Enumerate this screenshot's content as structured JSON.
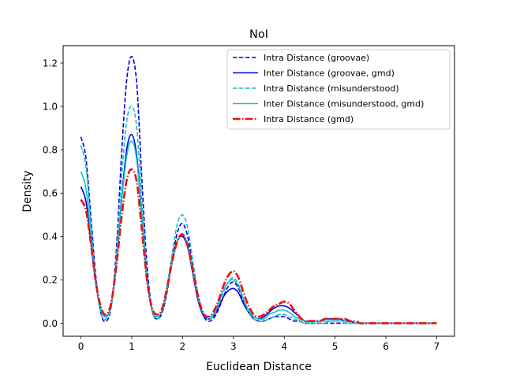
{
  "chart_data": {
    "type": "line",
    "title": "NoI",
    "xlabel": "Euclidean Distance",
    "ylabel": "Density",
    "xlim": [
      -0.35,
      7.35
    ],
    "ylim": [
      -0.06,
      1.28
    ],
    "xticks": [
      0,
      1,
      2,
      3,
      4,
      5,
      6,
      7
    ],
    "xtick_labels": [
      "0",
      "1",
      "2",
      "3",
      "4",
      "5",
      "6",
      "7"
    ],
    "yticks": [
      0.0,
      0.2,
      0.4,
      0.6,
      0.8,
      1.0,
      1.2
    ],
    "ytick_labels": [
      "0.0",
      "0.2",
      "0.4",
      "0.6",
      "0.8",
      "1.0",
      "1.2"
    ],
    "grid": false,
    "legend_position": "top-right",
    "series": [
      {
        "name": "Intra Distance (groovae)",
        "color": "#0000dd",
        "style": "dashed",
        "x": [
          0,
          0.1,
          0.2,
          0.3,
          0.4,
          0.5,
          0.6,
          0.7,
          0.8,
          0.9,
          1.0,
          1.1,
          1.2,
          1.3,
          1.4,
          1.5,
          1.6,
          1.7,
          1.8,
          1.9,
          2.0,
          2.1,
          2.2,
          2.3,
          2.4,
          2.5,
          2.6,
          2.7,
          2.8,
          2.9,
          3.0,
          3.1,
          3.2,
          3.3,
          3.4,
          3.5,
          3.6,
          3.7,
          3.8,
          3.9,
          4.0,
          4.1,
          4.2,
          4.3,
          4.4,
          4.5,
          4.6,
          4.7,
          4.8,
          4.9,
          5.0,
          5.1,
          5.2,
          5.3,
          5.4,
          5.5,
          5.6,
          5.7,
          5.8,
          5.9,
          6.0,
          6.1,
          6.2,
          6.3,
          6.4,
          6.5,
          6.6,
          6.7,
          6.8,
          6.9,
          7.0
        ],
        "values": [
          0.86,
          0.76,
          0.48,
          0.2,
          0.04,
          0.01,
          0.08,
          0.35,
          0.78,
          1.12,
          1.23,
          1.1,
          0.66,
          0.27,
          0.06,
          0.02,
          0.05,
          0.15,
          0.3,
          0.42,
          0.46,
          0.4,
          0.27,
          0.13,
          0.04,
          0.01,
          0.02,
          0.06,
          0.12,
          0.17,
          0.19,
          0.16,
          0.1,
          0.05,
          0.02,
          0.01,
          0.01,
          0.02,
          0.03,
          0.03,
          0.03,
          0.02,
          0.01,
          0.01,
          0.0,
          0.0,
          0.0,
          0.0,
          0.0,
          0.0,
          0.0,
          0.0,
          0.0,
          0.0,
          0.0,
          0.0,
          0.0,
          0.0,
          0.0,
          0.0,
          0.0,
          0.0,
          0.0,
          0.0,
          0.0,
          0.0,
          0.0,
          0.0,
          0.0,
          0.0,
          0.0
        ]
      },
      {
        "name": "Inter Distance (groovae, gmd)",
        "color": "#0000dd",
        "style": "solid",
        "x": [
          0,
          0.1,
          0.2,
          0.3,
          0.4,
          0.5,
          0.6,
          0.7,
          0.8,
          0.9,
          1.0,
          1.1,
          1.2,
          1.3,
          1.4,
          1.5,
          1.6,
          1.7,
          1.8,
          1.9,
          2.0,
          2.1,
          2.2,
          2.3,
          2.4,
          2.5,
          2.6,
          2.7,
          2.8,
          2.9,
          3.0,
          3.1,
          3.2,
          3.3,
          3.4,
          3.5,
          3.6,
          3.7,
          3.8,
          3.9,
          4.0,
          4.1,
          4.2,
          4.3,
          4.4,
          4.5,
          4.6,
          4.7,
          4.8,
          4.9,
          5.0,
          5.1,
          5.2,
          5.3,
          5.4,
          5.5,
          5.6,
          5.7,
          5.8,
          5.9,
          6.0,
          6.1,
          6.2,
          6.3,
          6.4,
          6.5,
          6.6,
          6.7,
          6.8,
          6.9,
          7.0
        ],
        "values": [
          0.63,
          0.56,
          0.37,
          0.17,
          0.06,
          0.03,
          0.09,
          0.28,
          0.57,
          0.8,
          0.87,
          0.77,
          0.49,
          0.2,
          0.06,
          0.03,
          0.06,
          0.16,
          0.29,
          0.38,
          0.4,
          0.35,
          0.23,
          0.11,
          0.04,
          0.02,
          0.03,
          0.07,
          0.12,
          0.15,
          0.16,
          0.14,
          0.09,
          0.05,
          0.03,
          0.02,
          0.03,
          0.05,
          0.07,
          0.08,
          0.08,
          0.07,
          0.05,
          0.03,
          0.01,
          0.01,
          0.01,
          0.01,
          0.02,
          0.02,
          0.02,
          0.02,
          0.01,
          0.01,
          0.0,
          0.0,
          0.0,
          0.0,
          0.0,
          0.0,
          0.0,
          0.0,
          0.0,
          0.0,
          0.0,
          0.0,
          0.0,
          0.0,
          0.0,
          0.0,
          0.0
        ]
      },
      {
        "name": "Intra Distance (misunderstood)",
        "color": "#17becf",
        "style": "dashed",
        "x": [
          0,
          0.1,
          0.2,
          0.3,
          0.4,
          0.5,
          0.6,
          0.7,
          0.8,
          0.9,
          1.0,
          1.1,
          1.2,
          1.3,
          1.4,
          1.5,
          1.6,
          1.7,
          1.8,
          1.9,
          2.0,
          2.1,
          2.2,
          2.3,
          2.4,
          2.5,
          2.6,
          2.7,
          2.8,
          2.9,
          3.0,
          3.1,
          3.2,
          3.3,
          3.4,
          3.5,
          3.6,
          3.7,
          3.8,
          3.9,
          4.0,
          4.1,
          4.2,
          4.3,
          4.4,
          4.5,
          4.6,
          4.7,
          4.8,
          4.9,
          5.0,
          5.1,
          5.2,
          5.3,
          5.4,
          5.5,
          5.6,
          5.7,
          5.8,
          5.9,
          6.0,
          6.1,
          6.2,
          6.3,
          6.4,
          6.5,
          6.6,
          6.7,
          6.8,
          6.9,
          7.0
        ],
        "values": [
          0.82,
          0.72,
          0.45,
          0.18,
          0.04,
          0.02,
          0.08,
          0.31,
          0.67,
          0.93,
          1.0,
          0.9,
          0.56,
          0.23,
          0.06,
          0.02,
          0.06,
          0.18,
          0.33,
          0.46,
          0.5,
          0.44,
          0.29,
          0.14,
          0.05,
          0.02,
          0.03,
          0.08,
          0.14,
          0.19,
          0.21,
          0.18,
          0.11,
          0.05,
          0.02,
          0.01,
          0.01,
          0.02,
          0.03,
          0.04,
          0.04,
          0.03,
          0.02,
          0.01,
          0.0,
          0.0,
          0.0,
          0.0,
          0.0,
          0.01,
          0.01,
          0.01,
          0.0,
          0.0,
          0.0,
          0.0,
          0.0,
          0.0,
          0.0,
          0.0,
          0.0,
          0.0,
          0.0,
          0.0,
          0.0,
          0.0,
          0.0,
          0.0,
          0.0,
          0.0,
          0.0
        ]
      },
      {
        "name": "Inter Distance (misunderstood, gmd)",
        "color": "#17becf",
        "style": "solid",
        "x": [
          0,
          0.1,
          0.2,
          0.3,
          0.4,
          0.5,
          0.6,
          0.7,
          0.8,
          0.9,
          1.0,
          1.1,
          1.2,
          1.3,
          1.4,
          1.5,
          1.6,
          1.7,
          1.8,
          1.9,
          2.0,
          2.1,
          2.2,
          2.3,
          2.4,
          2.5,
          2.6,
          2.7,
          2.8,
          2.9,
          3.0,
          3.1,
          3.2,
          3.3,
          3.4,
          3.5,
          3.6,
          3.7,
          3.8,
          3.9,
          4.0,
          4.1,
          4.2,
          4.3,
          4.4,
          4.5,
          4.6,
          4.7,
          4.8,
          4.9,
          5.0,
          5.1,
          5.2,
          5.3,
          5.4,
          5.5,
          5.6,
          5.7,
          5.8,
          5.9,
          6.0,
          6.1,
          6.2,
          6.3,
          6.4,
          6.5,
          6.6,
          6.7,
          6.8,
          6.9,
          7.0
        ],
        "values": [
          0.7,
          0.62,
          0.4,
          0.18,
          0.06,
          0.03,
          0.09,
          0.28,
          0.56,
          0.77,
          0.84,
          0.75,
          0.48,
          0.2,
          0.06,
          0.03,
          0.06,
          0.16,
          0.29,
          0.38,
          0.41,
          0.36,
          0.24,
          0.12,
          0.05,
          0.03,
          0.04,
          0.09,
          0.15,
          0.19,
          0.2,
          0.17,
          0.11,
          0.06,
          0.03,
          0.02,
          0.02,
          0.04,
          0.05,
          0.06,
          0.06,
          0.05,
          0.03,
          0.02,
          0.01,
          0.0,
          0.01,
          0.01,
          0.01,
          0.01,
          0.01,
          0.01,
          0.01,
          0.0,
          0.0,
          0.0,
          0.0,
          0.0,
          0.0,
          0.0,
          0.0,
          0.0,
          0.0,
          0.0,
          0.0,
          0.0,
          0.0,
          0.0,
          0.0,
          0.0,
          0.0
        ]
      },
      {
        "name": "Intra Distance (gmd)",
        "color": "#e8120f",
        "style": "dashdot",
        "x": [
          0,
          0.1,
          0.2,
          0.3,
          0.4,
          0.5,
          0.6,
          0.7,
          0.8,
          0.9,
          1.0,
          1.1,
          1.2,
          1.3,
          1.4,
          1.5,
          1.6,
          1.7,
          1.8,
          1.9,
          2.0,
          2.1,
          2.2,
          2.3,
          2.4,
          2.5,
          2.6,
          2.7,
          2.8,
          2.9,
          3.0,
          3.1,
          3.2,
          3.3,
          3.4,
          3.5,
          3.6,
          3.7,
          3.8,
          3.9,
          4.0,
          4.1,
          4.2,
          4.3,
          4.4,
          4.5,
          4.6,
          4.7,
          4.8,
          4.9,
          5.0,
          5.1,
          5.2,
          5.3,
          5.4,
          5.5,
          5.6,
          5.7,
          5.8,
          5.9,
          6.0,
          6.1,
          6.2,
          6.3,
          6.4,
          6.5,
          6.6,
          6.7,
          6.8,
          6.9,
          7.0
        ],
        "values": [
          0.57,
          0.52,
          0.36,
          0.18,
          0.07,
          0.04,
          0.1,
          0.27,
          0.49,
          0.66,
          0.71,
          0.65,
          0.43,
          0.2,
          0.07,
          0.04,
          0.07,
          0.17,
          0.29,
          0.38,
          0.41,
          0.36,
          0.25,
          0.13,
          0.05,
          0.03,
          0.05,
          0.1,
          0.17,
          0.22,
          0.24,
          0.21,
          0.14,
          0.08,
          0.04,
          0.03,
          0.04,
          0.06,
          0.08,
          0.09,
          0.1,
          0.09,
          0.06,
          0.03,
          0.01,
          0.01,
          0.01,
          0.01,
          0.02,
          0.02,
          0.02,
          0.02,
          0.02,
          0.01,
          0.01,
          0.0,
          0.0,
          0.0,
          0.0,
          0.0,
          0.0,
          0.0,
          0.0,
          0.0,
          0.0,
          0.0,
          0.0,
          0.0,
          0.0,
          0.0,
          0.0
        ]
      }
    ]
  }
}
